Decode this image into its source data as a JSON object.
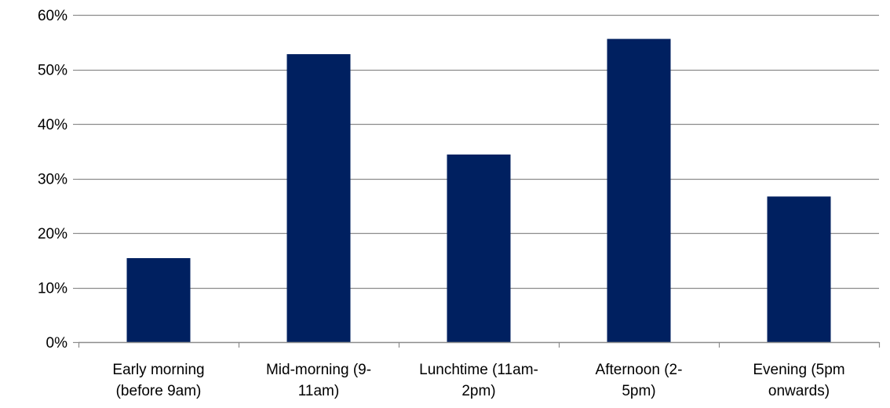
{
  "chart_data": {
    "type": "bar",
    "title": "",
    "xlabel": "",
    "ylabel": "",
    "categories": [
      [
        "Early morning",
        "(before 9am)"
      ],
      [
        "Mid-morning (9-",
        "11am)"
      ],
      [
        "Lunchtime (11am-",
        "2pm)"
      ],
      [
        "Afternoon (2-",
        "5pm)"
      ],
      [
        "Evening (5pm",
        "onwards)"
      ]
    ],
    "values": [
      15.4,
      52.8,
      34.4,
      55.6,
      26.7
    ],
    "ylim": [
      0,
      60
    ],
    "yticks": [
      0,
      10,
      20,
      30,
      40,
      50,
      60
    ],
    "ytick_labels": [
      "0%",
      "10%",
      "20%",
      "30%",
      "40%",
      "50%",
      "60%"
    ],
    "grid": true,
    "legend": "none",
    "colors": {
      "bar": "#002060",
      "grid": "#8c8c8c",
      "axis": "#8c8c8c",
      "text": "#000000"
    }
  }
}
